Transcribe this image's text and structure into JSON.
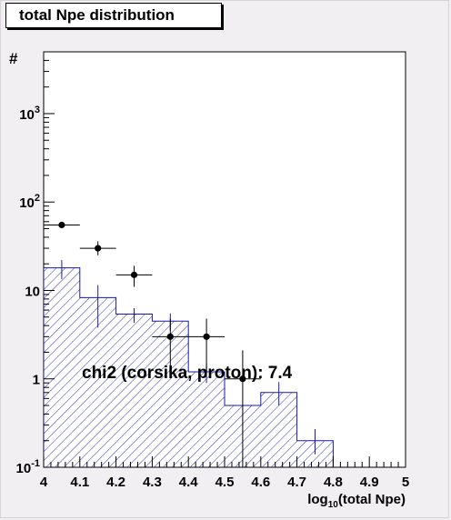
{
  "chart_data": {
    "type": "histogram",
    "title": "total Npe distribution",
    "xlabel": "log10(total Npe)",
    "xlabel_base": "log",
    "xlabel_sub": "10",
    "xlabel_rest": "(total Npe)",
    "ylabel": "#",
    "y_scale": "log",
    "xlim": [
      4,
      5
    ],
    "ylim": [
      0.1,
      5000
    ],
    "x_ticks": [
      "4",
      "4.1",
      "4.2",
      "4.3",
      "4.4",
      "4.5",
      "4.6",
      "4.7",
      "4.8",
      "4.9",
      "5"
    ],
    "y_ticks": [
      {
        "value": 0.1,
        "base": "10",
        "exp": "-1"
      },
      {
        "value": 1,
        "base": "1",
        "exp": ""
      },
      {
        "value": 10,
        "base": "10",
        "exp": ""
      },
      {
        "value": 100,
        "base": "10",
        "exp": "2"
      },
      {
        "value": 1000,
        "base": "10",
        "exp": "3"
      }
    ],
    "annotation": "chi2 (corsika, proton): 7.4",
    "grid": false,
    "series": [
      {
        "style": "histogram",
        "color": "#1a1aa8",
        "fill": "hatched",
        "bin_edges": [
          4.0,
          4.1,
          4.2,
          4.3,
          4.4,
          4.5,
          4.6,
          4.7,
          4.8
        ],
        "values": [
          18,
          8.3,
          5.4,
          4.5,
          1.2,
          0.5,
          0.7,
          0.2
        ],
        "err_low": [
          13.5,
          3.8,
          4.3,
          3.5,
          0.9,
          0.5,
          0.5,
          0.14
        ],
        "err_high": [
          22,
          11.5,
          6.3,
          5.5,
          1.5,
          0.5,
          0.92,
          0.27
        ]
      },
      {
        "style": "points",
        "color": "#000000",
        "x": [
          4.05,
          4.15,
          4.25,
          4.35,
          4.45,
          4.55
        ],
        "y": [
          55,
          30,
          15,
          3,
          3,
          1
        ],
        "x_err": [
          0.05,
          0.05,
          0.05,
          0.05,
          0.05,
          0.05
        ],
        "y_low": [
          null,
          25,
          11,
          1.2,
          1.2,
          0.1
        ],
        "y_high": [
          null,
          36,
          19,
          4.8,
          4.8,
          2.1
        ]
      }
    ]
  }
}
